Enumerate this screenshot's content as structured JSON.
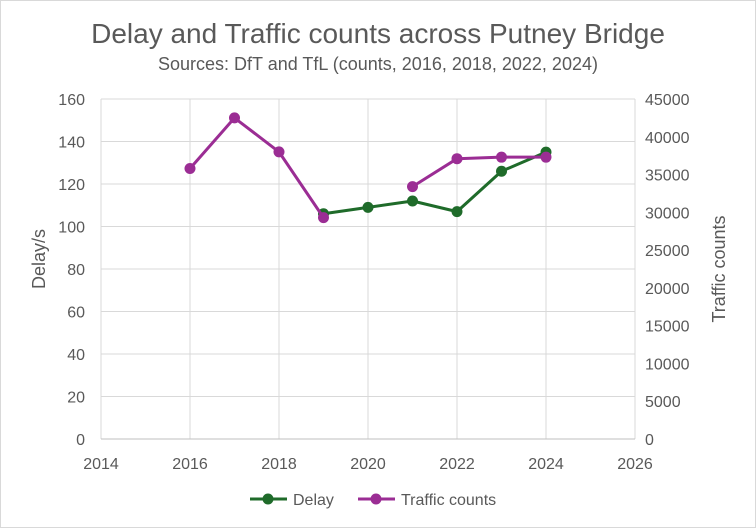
{
  "chart_data": {
    "type": "line",
    "title": "Delay and Traffic counts across Putney Bridge",
    "subtitle": "Sources: DfT and TfL (counts, 2016, 2018, 2022, 2024)",
    "xlabel": "",
    "ylabel": "Delay/s",
    "y2label": "Traffic counts",
    "xlim": [
      2014,
      2026
    ],
    "ylim": [
      0,
      160
    ],
    "y2lim": [
      0,
      45000
    ],
    "x_ticks": [
      "2014",
      "2016",
      "2018",
      "2020",
      "2022",
      "2024",
      "2026"
    ],
    "y_ticks": [
      "0",
      "20",
      "40",
      "60",
      "80",
      "100",
      "120",
      "140",
      "160"
    ],
    "y2_ticks": [
      "0",
      "5000",
      "10000",
      "15000",
      "20000",
      "25000",
      "30000",
      "35000",
      "40000",
      "45000"
    ],
    "grid": true,
    "legend_position": "bottom",
    "series": [
      {
        "name": "Delay",
        "axis": "left",
        "color": "#1f6b2a",
        "x": [
          2019,
          2020,
          2021,
          2022,
          2023,
          2024
        ],
        "values": [
          106,
          109,
          112,
          107,
          126,
          135
        ],
        "segments": [
          [
            0,
            5
          ]
        ]
      },
      {
        "name": "Traffic counts",
        "axis": "right",
        "color": "#9b2d94",
        "x": [
          2016,
          2017,
          2018,
          2019,
          2021,
          2022,
          2023,
          2024
        ],
        "values": [
          35800,
          42500,
          38000,
          29300,
          33400,
          37100,
          37300,
          37300
        ],
        "segments": [
          [
            0,
            3
          ],
          [
            4,
            7
          ]
        ]
      }
    ]
  }
}
